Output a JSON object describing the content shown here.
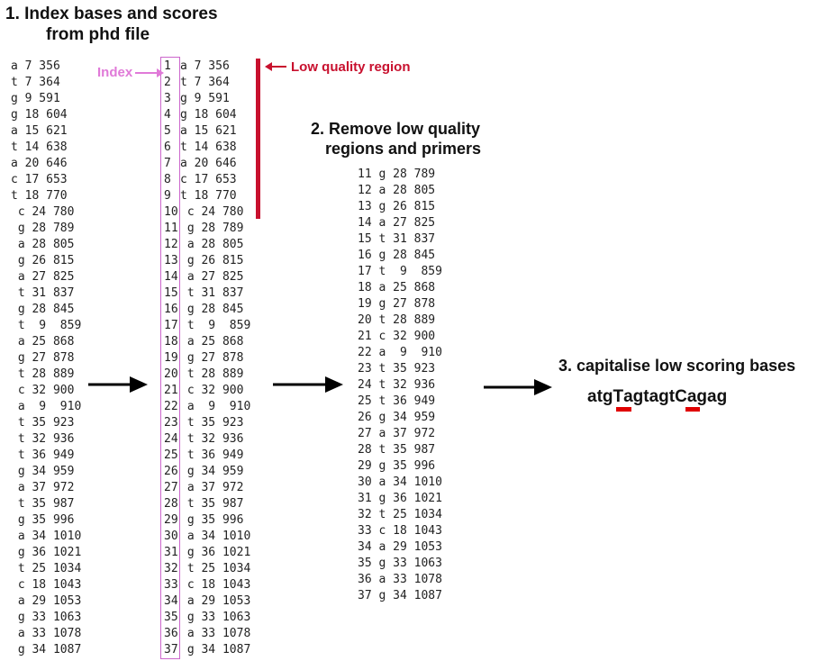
{
  "step1": {
    "line1": "1. Index bases and scores",
    "line2": "from phd file"
  },
  "step2": {
    "line1": "2. Remove low quality",
    "line2": "regions and primers"
  },
  "step3": {
    "title": "3. capitalise low scoring bases"
  },
  "index_label": "Index",
  "low_quality_label": "Low quality region",
  "colors": {
    "index_box": "#cc66cc",
    "index_label": "#e07ad8",
    "low_quality": "#c8102e",
    "highlight": "#e00000",
    "arrow": "#000000"
  },
  "raw_rows": [
    "a 7 356",
    "t 7 364",
    "g 9 591",
    "g 18 604",
    "a 15 621",
    "t 14 638",
    "a 20 646",
    "c 17 653",
    "t 18 770",
    " c 24 780",
    " g 28 789",
    " a 28 805",
    " g 26 815",
    " a 27 825",
    " t 31 837",
    " g 28 845",
    " t  9  859",
    " a 25 868",
    " g 27 878",
    " t 28 889",
    " c 32 900",
    " a  9  910",
    " t 35 923",
    " t 32 936",
    " t 36 949",
    " g 34 959",
    " a 37 972",
    " t 35 987",
    " g 35 996",
    " a 34 1010",
    " g 36 1021",
    " t 25 1034",
    " c 18 1043",
    " a 29 1053",
    " g 33 1063",
    " a 33 1078",
    " g 34 1087"
  ],
  "indexed_rows": [
    "a 7 356",
    "t 7 364",
    "g 9 591",
    "g 18 604",
    "a 15 621",
    "t 14 638",
    "a 20 646",
    "c 17 653",
    "t 18 770",
    " c 24 780",
    " g 28 789",
    " a 28 805",
    " g 26 815",
    " a 27 825",
    " t 31 837",
    " g 28 845",
    " t  9  859",
    " a 25 868",
    " g 27 878",
    " t 28 889",
    " c 32 900",
    " a  9  910",
    " t 35 923",
    " t 32 936",
    " t 36 949",
    " g 34 959",
    " a 37 972",
    " t 35 987",
    " g 35 996",
    " a 34 1010",
    " g 36 1021",
    " t 25 1034",
    " c 18 1043",
    " a 29 1053",
    " g 33 1063",
    " a 33 1078",
    " g 34 1087"
  ],
  "indices": [
    "1",
    "2",
    "3",
    "4",
    "5",
    "6",
    "7",
    "8",
    "9",
    "10",
    "11",
    "12",
    "13",
    "14",
    "15",
    "16",
    "17",
    "18",
    "19",
    "20",
    "21",
    "22",
    "23",
    "24",
    "25",
    "26",
    "27",
    "28",
    "29",
    "30",
    "31",
    "32",
    "33",
    "34",
    "35",
    "36",
    "37"
  ],
  "trimmed_rows": [
    "11 g 28 789",
    "12 a 28 805",
    "13 g 26 815",
    "14 a 27 825",
    "15 t 31 837",
    "16 g 28 845",
    "17 t  9  859",
    "18 a 25 868",
    "19 g 27 878",
    "20 t 28 889",
    "21 c 32 900",
    "22 a  9  910",
    "23 t 35 923",
    "24 t 32 936",
    "25 t 36 949",
    "26 g 34 959",
    "27 a 37 972",
    "28 t 35 987",
    "29 g 35 996",
    "30 a 34 1010",
    "31 g 36 1021",
    "32 t 25 1034",
    "33 c 18 1043",
    "34 a 29 1053",
    "35 g 33 1063",
    "36 a 33 1078",
    "37 g 34 1087"
  ],
  "sequence": {
    "p1": "atg",
    "u1": "T",
    "p2": "agtagt",
    "u2": "C",
    "p3": "agag"
  }
}
